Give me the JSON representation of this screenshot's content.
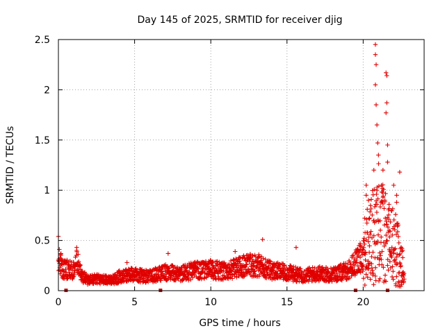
{
  "chart_data": {
    "type": "scatter",
    "title": "Day 145 of 2025, SRMTID for receiver djig",
    "xlabel": "GPS time / hours",
    "ylabel": "SRMTID / TECUs",
    "xlim": [
      0,
      24
    ],
    "ylim": [
      0,
      2.5
    ],
    "x_ticks": [
      0,
      5,
      10,
      15,
      20
    ],
    "x_tick_labels": [
      "0",
      "5",
      "10",
      "15",
      "20"
    ],
    "y_ticks": [
      0,
      0.5,
      1,
      1.5,
      2,
      2.5
    ],
    "y_tick_labels": [
      "0",
      "0.5",
      "1",
      "1.5",
      "2",
      "2.5"
    ],
    "grid": true,
    "marker": "+",
    "color": "#e00000",
    "data_gap_markers_hours": [
      0.5,
      6.7,
      19.5,
      21.6
    ],
    "series": [
      {
        "name": "SRMTID",
        "profile": [
          [
            0.0,
            0.3
          ],
          [
            0.3,
            0.22
          ],
          [
            1.0,
            0.2
          ],
          [
            1.2,
            0.3
          ],
          [
            1.5,
            0.15
          ],
          [
            2.0,
            0.1
          ],
          [
            2.5,
            0.12
          ],
          [
            3.0,
            0.11
          ],
          [
            3.5,
            0.1
          ],
          [
            4.0,
            0.14
          ],
          [
            5.0,
            0.16
          ],
          [
            6.0,
            0.14
          ],
          [
            7.0,
            0.18
          ],
          [
            8.0,
            0.17
          ],
          [
            9.0,
            0.2
          ],
          [
            10.0,
            0.21
          ],
          [
            11.0,
            0.19
          ],
          [
            12.0,
            0.24
          ],
          [
            13.0,
            0.26
          ],
          [
            14.0,
            0.2
          ],
          [
            15.0,
            0.18
          ],
          [
            16.0,
            0.15
          ],
          [
            17.0,
            0.17
          ],
          [
            18.0,
            0.16
          ],
          [
            19.0,
            0.2
          ],
          [
            19.5,
            0.28
          ],
          [
            20.0,
            0.35
          ],
          [
            20.5,
            0.5
          ],
          [
            21.0,
            0.7
          ],
          [
            21.5,
            0.5
          ],
          [
            22.0,
            0.45
          ],
          [
            22.5,
            0.3
          ],
          [
            22.7,
            0.1
          ]
        ],
        "outliers": [
          [
            0.0,
            0.54
          ],
          [
            1.2,
            0.43
          ],
          [
            4.5,
            0.28
          ],
          [
            7.2,
            0.37
          ],
          [
            11.6,
            0.39
          ],
          [
            13.4,
            0.51
          ],
          [
            15.6,
            0.43
          ],
          [
            19.8,
            0.47
          ],
          [
            20.1,
            0.72
          ],
          [
            20.2,
            1.05
          ],
          [
            20.2,
            0.95
          ],
          [
            20.35,
            0.9
          ],
          [
            20.8,
            2.45
          ],
          [
            20.8,
            2.35
          ],
          [
            20.85,
            2.25
          ],
          [
            20.8,
            2.05
          ],
          [
            20.85,
            1.85
          ],
          [
            20.9,
            1.65
          ],
          [
            20.95,
            1.47
          ],
          [
            21.0,
            1.35
          ],
          [
            20.7,
            1.2
          ],
          [
            20.9,
            1.0
          ],
          [
            21.3,
            1.2
          ],
          [
            21.2,
            1.05
          ],
          [
            21.3,
            0.93
          ],
          [
            21.5,
            2.17
          ],
          [
            21.55,
            2.14
          ],
          [
            21.55,
            1.87
          ],
          [
            21.5,
            1.77
          ],
          [
            21.6,
            1.45
          ],
          [
            21.6,
            1.28
          ],
          [
            21.7,
            0.6
          ],
          [
            22.0,
            1.05
          ],
          [
            22.2,
            0.95
          ],
          [
            22.2,
            0.88
          ],
          [
            22.4,
            1.18
          ]
        ]
      }
    ]
  }
}
